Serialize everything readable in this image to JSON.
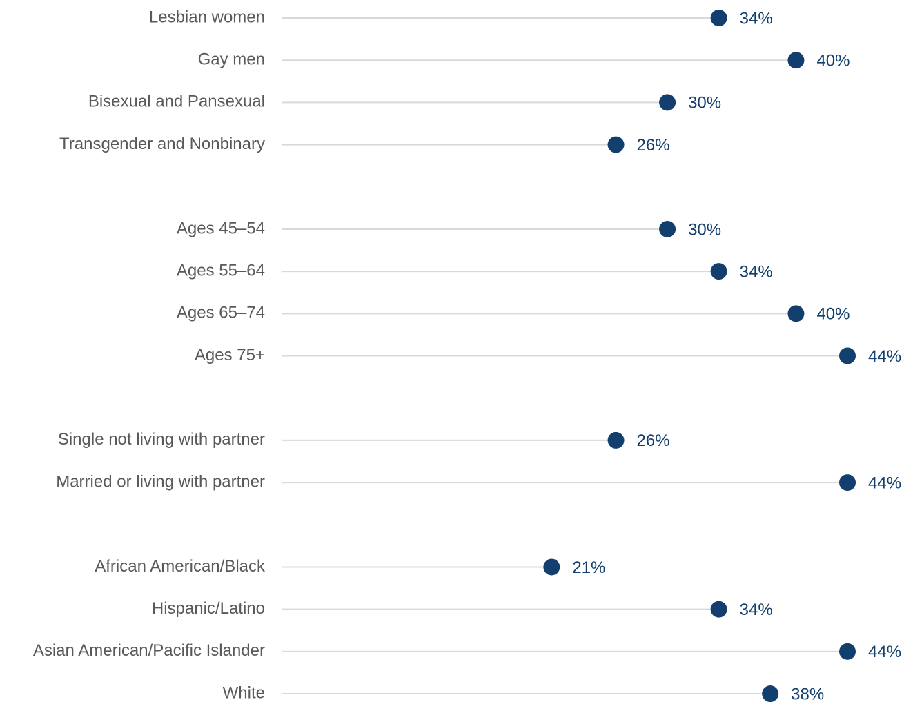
{
  "chart_data": {
    "type": "dot",
    "categories": [
      "Lesbian women",
      "Gay men",
      "Bisexual and Pansexual",
      "Transgender and Nonbinary",
      null,
      "Ages 45–54",
      "Ages 55–64",
      "Ages 65–74",
      "Ages 75+",
      null,
      "Single not living with partner",
      "Married or living with partner",
      null,
      "African American/Black",
      "Hispanic/Latino",
      "Asian American/Pacific Islander",
      "White"
    ],
    "values": [
      34,
      40,
      30,
      26,
      null,
      30,
      34,
      40,
      44,
      null,
      26,
      44,
      null,
      21,
      34,
      44,
      38
    ],
    "value_labels": [
      "34%",
      "40%",
      "30%",
      "26%",
      null,
      "30%",
      "34%",
      "40%",
      "44%",
      null,
      "26%",
      "44%",
      null,
      "21%",
      "34%",
      "44%",
      "38%"
    ],
    "color": "#123f6e",
    "xlim": [
      0,
      44
    ]
  }
}
